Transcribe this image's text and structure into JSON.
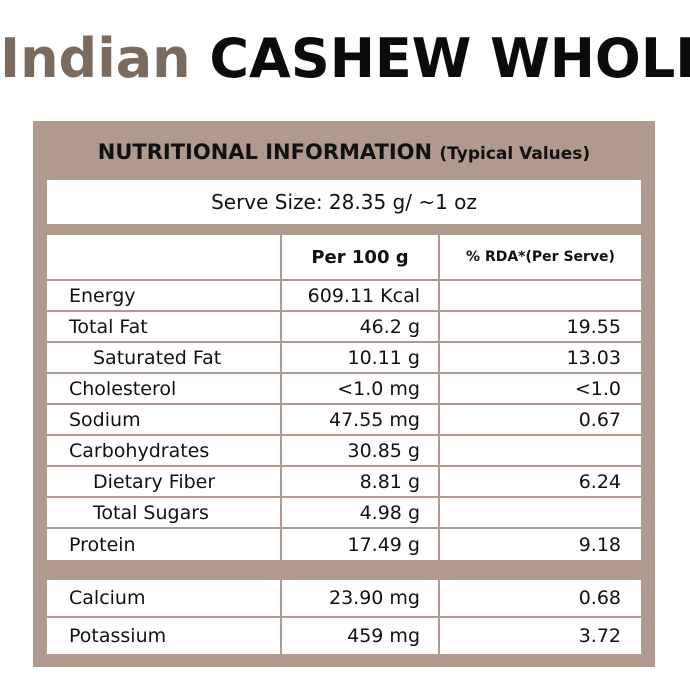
{
  "title": {
    "accent": "Indian",
    "main": "CASHEW WHOLE"
  },
  "panel": {
    "heading": "NUTRITIONAL INFORMATION",
    "heading_sub": "(Typical Values)",
    "serve_size": "Serve Size: 28.35 g/ ~1 oz"
  },
  "table": {
    "col_per100": "Per 100 g",
    "col_rda": "% RDA*(Per Serve)",
    "rows": [
      {
        "name": "Energy",
        "per100": "609.11 Kcal",
        "rda": ""
      },
      {
        "name": "Total Fat",
        "per100": "46.2 g",
        "rda": "19.55"
      },
      {
        "name": "Saturated Fat",
        "per100": "10.11 g",
        "rda": "13.03"
      },
      {
        "name": "Cholesterol",
        "per100": "<1.0 mg",
        "rda": "<1.0"
      },
      {
        "name": "Sodium",
        "per100": "47.55 mg",
        "rda": "0.67"
      },
      {
        "name": "Carbohydrates",
        "per100": "30.85 g",
        "rda": ""
      },
      {
        "name": "Dietary Fiber",
        "per100": "8.81 g",
        "rda": "6.24"
      },
      {
        "name": "Total Sugars",
        "per100": "4.98 g",
        "rda": ""
      },
      {
        "name": "Protein",
        "per100": "17.49 g",
        "rda": "9.18"
      }
    ],
    "minerals": [
      {
        "name": "Calcium",
        "per100": "23.90 mg",
        "rda": "0.68"
      },
      {
        "name": "Potassium",
        "per100": "459 mg",
        "rda": "3.72"
      }
    ]
  }
}
